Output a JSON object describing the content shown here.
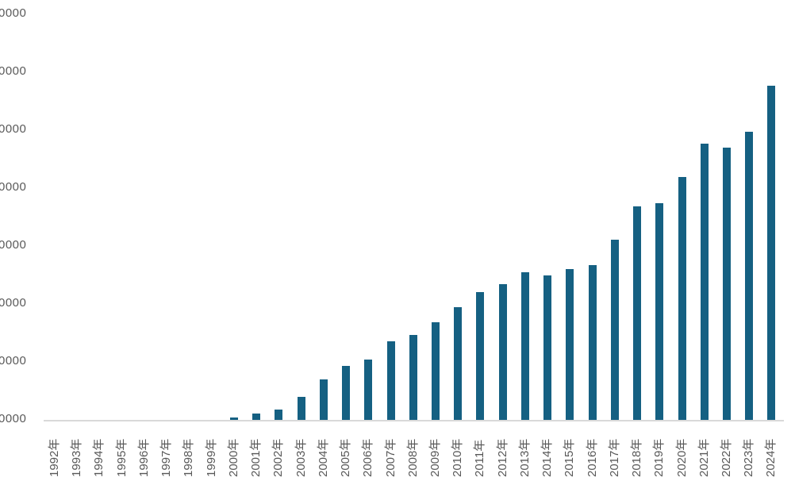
{
  "colors": {
    "bar": "#156082",
    "text": "#595959",
    "axis_line": "#D9D9D9",
    "background": "#FFFFFF"
  },
  "chart_data": {
    "type": "bar",
    "title": "",
    "xlabel": "",
    "ylabel": "",
    "categories": [
      "1992年",
      "1993年",
      "1994年",
      "1995年",
      "1996年",
      "1997年",
      "1998年",
      "1999年",
      "2000年",
      "2001年",
      "2002年",
      "2003年",
      "2004年",
      "2005年",
      "2006年",
      "2007年",
      "2008年",
      "2009年",
      "2010年",
      "2011年",
      "2012年",
      "2013年",
      "2014年",
      "2015年",
      "2016年",
      "2017年",
      "2018年",
      "2019年",
      "2020年",
      "2021年",
      "2022年",
      "2023年",
      "2024年"
    ],
    "values": [
      0,
      0,
      0,
      0,
      0,
      0,
      0,
      0,
      5000,
      12000,
      19000,
      41000,
      71000,
      95000,
      105000,
      137000,
      148000,
      170000,
      196000,
      222000,
      236000,
      256000,
      251000,
      262000,
      268000,
      312000,
      370000,
      375000,
      421000,
      478000,
      471000,
      499000,
      578000
    ],
    "ylim": [
      0,
      700000
    ],
    "y_tick_step": 100000,
    "y_tick_labels_visible": [
      "0000",
      "0000",
      "0000",
      "0000",
      "0000",
      "0000",
      "0000",
      "0000"
    ],
    "grid": false,
    "legend": "none",
    "bar_orientation": "vertical",
    "x_label_rotation_degrees": -90
  }
}
